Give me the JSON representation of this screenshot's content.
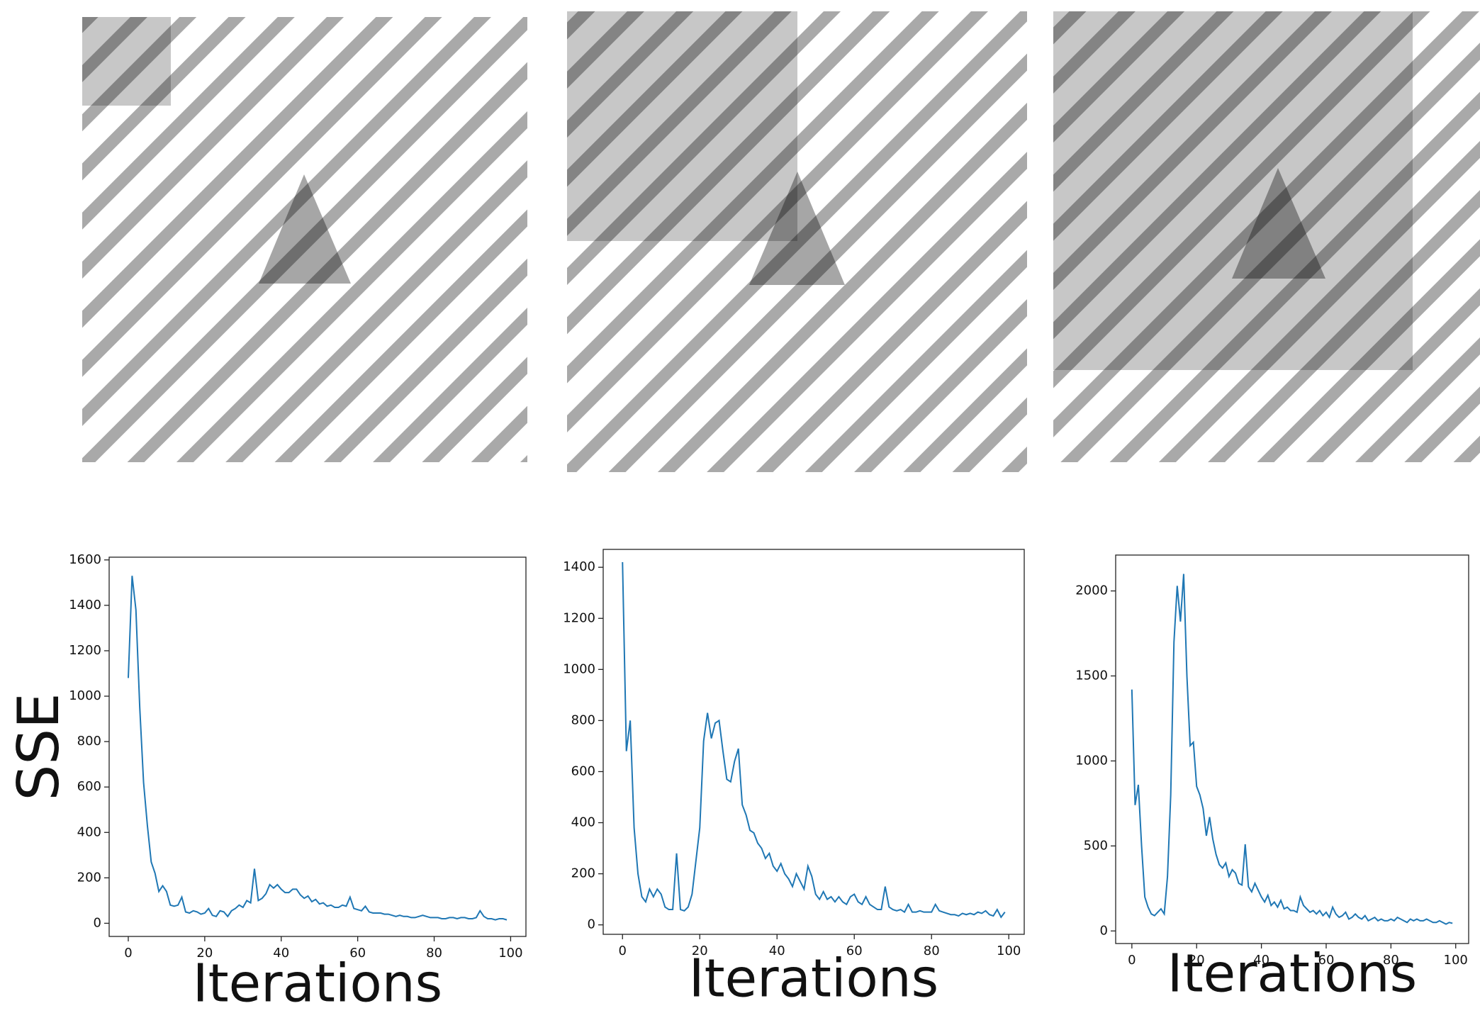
{
  "chart_data": [
    {
      "type": "line",
      "ylabel": "SSE",
      "xlabel": "Iterations",
      "xlim": [
        -5,
        104
      ],
      "ylim": [
        -58,
        1612
      ],
      "xticks": [
        0,
        20,
        40,
        60,
        80,
        100
      ],
      "yticks": [
        0,
        200,
        400,
        600,
        800,
        1000,
        1200,
        1400,
        1600
      ],
      "series": [
        {
          "color": "#1f77b4",
          "values": [
            1080,
            1530,
            1380,
            950,
            620,
            430,
            270,
            220,
            140,
            165,
            140,
            80,
            75,
            80,
            115,
            50,
            45,
            55,
            50,
            40,
            45,
            65,
            35,
            30,
            55,
            50,
            30,
            55,
            65,
            80,
            70,
            100,
            90,
            240,
            100,
            110,
            130,
            170,
            155,
            170,
            150,
            135,
            135,
            150,
            150,
            125,
            110,
            120,
            95,
            105,
            85,
            90,
            75,
            80,
            70,
            70,
            80,
            75,
            115,
            65,
            60,
            55,
            75,
            50,
            45,
            45,
            45,
            40,
            40,
            35,
            30,
            35,
            30,
            30,
            25,
            25,
            30,
            35,
            30,
            25,
            25,
            25,
            20,
            20,
            25,
            25,
            20,
            25,
            25,
            20,
            20,
            25,
            55,
            30,
            20,
            20,
            15,
            20,
            20,
            15
          ]
        }
      ]
    },
    {
      "type": "line",
      "xlabel": "Iterations",
      "xlim": [
        -5,
        104
      ],
      "ylim": [
        -37,
        1470
      ],
      "xticks": [
        0,
        20,
        40,
        60,
        80,
        100
      ],
      "yticks": [
        0,
        200,
        400,
        600,
        800,
        1000,
        1200,
        1400
      ],
      "series": [
        {
          "color": "#1f77b4",
          "values": [
            1420,
            680,
            800,
            380,
            200,
            110,
            90,
            140,
            110,
            140,
            120,
            70,
            60,
            60,
            280,
            60,
            55,
            70,
            120,
            250,
            380,
            720,
            830,
            730,
            790,
            800,
            680,
            570,
            560,
            640,
            690,
            470,
            430,
            370,
            360,
            320,
            300,
            260,
            280,
            230,
            210,
            240,
            200,
            180,
            150,
            200,
            170,
            140,
            230,
            190,
            120,
            100,
            130,
            100,
            110,
            90,
            110,
            90,
            80,
            110,
            120,
            90,
            80,
            110,
            80,
            70,
            60,
            60,
            150,
            70,
            60,
            55,
            60,
            50,
            80,
            50,
            50,
            55,
            50,
            50,
            50,
            80,
            55,
            50,
            45,
            40,
            40,
            35,
            45,
            40,
            45,
            40,
            50,
            45,
            55,
            40,
            35,
            60,
            30,
            50
          ]
        }
      ]
    },
    {
      "type": "line",
      "xlabel": "Iterations",
      "xlim": [
        -5,
        104
      ],
      "ylim": [
        -74,
        2211
      ],
      "xticks": [
        0,
        20,
        40,
        60,
        80,
        100
      ],
      "yticks": [
        0,
        500,
        1000,
        1500,
        2000
      ],
      "series": [
        {
          "color": "#1f77b4",
          "values": [
            1420,
            740,
            860,
            500,
            200,
            140,
            100,
            90,
            110,
            130,
            100,
            320,
            800,
            1700,
            2030,
            1820,
            2100,
            1500,
            1090,
            1110,
            850,
            800,
            720,
            560,
            670,
            540,
            450,
            390,
            370,
            400,
            320,
            360,
            340,
            280,
            270,
            510,
            260,
            230,
            280,
            240,
            200,
            170,
            210,
            150,
            170,
            140,
            180,
            130,
            140,
            120,
            120,
            110,
            200,
            150,
            130,
            110,
            120,
            100,
            120,
            90,
            110,
            80,
            140,
            100,
            80,
            90,
            110,
            70,
            80,
            100,
            80,
            70,
            90,
            60,
            70,
            80,
            60,
            70,
            60,
            60,
            70,
            60,
            80,
            70,
            60,
            50,
            70,
            60,
            70,
            60,
            60,
            70,
            60,
            50,
            50,
            60,
            50,
            40,
            50,
            45
          ]
        }
      ]
    }
  ]
}
